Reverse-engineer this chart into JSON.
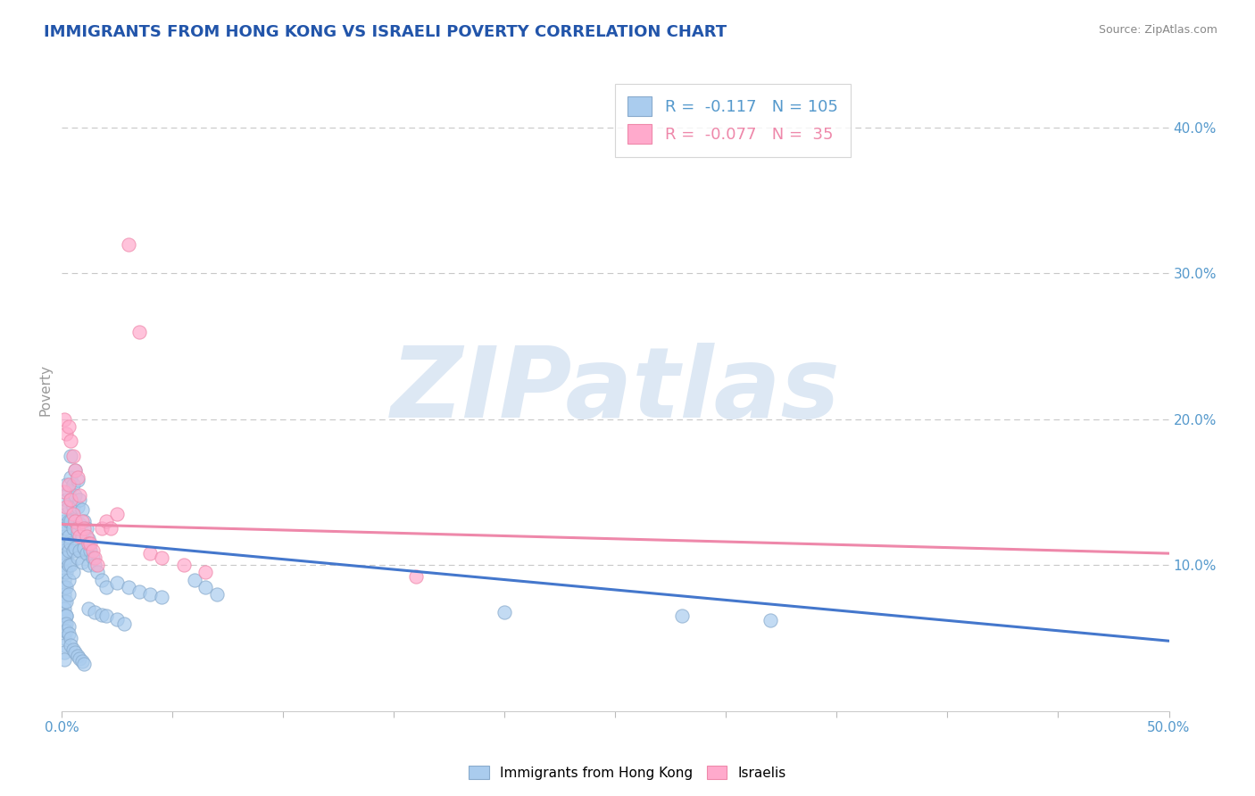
{
  "title": "IMMIGRANTS FROM HONG KONG VS ISRAELI POVERTY CORRELATION CHART",
  "source_text": "Source: ZipAtlas.com",
  "ylabel": "Poverty",
  "xlim": [
    0.0,
    0.5
  ],
  "ylim": [
    0.0,
    0.44
  ],
  "yticks_right": [
    0.1,
    0.2,
    0.3,
    0.4
  ],
  "ytick_labels_right": [
    "10.0%",
    "20.0%",
    "30.0%",
    "40.0%"
  ],
  "background_color": "#ffffff",
  "grid_color": "#c8c8c8",
  "title_color": "#2255aa",
  "axis_label_color": "#999999",
  "tick_color": "#5599cc",
  "watermark_text": "ZIPatlas",
  "watermark_color": "#dde8f4",
  "watermark_fontsize": 80,
  "legend_R1": "-0.117",
  "legend_N1": "105",
  "legend_R2": "-0.077",
  "legend_N2": "35",
  "series1_color": "#aaccee",
  "series2_color": "#ffaacc",
  "series1_edge": "#88aacc",
  "series2_edge": "#ee88aa",
  "line1_color": "#4477cc",
  "line2_color": "#ee88aa",
  "line1_y_start": 0.118,
  "line1_y_end": 0.048,
  "line2_y_start": 0.128,
  "line2_y_end": 0.108,
  "blue_x": [
    0.001,
    0.001,
    0.001,
    0.001,
    0.001,
    0.001,
    0.001,
    0.001,
    0.001,
    0.001,
    0.001,
    0.001,
    0.001,
    0.001,
    0.001,
    0.001,
    0.001,
    0.001,
    0.001,
    0.001,
    0.002,
    0.002,
    0.002,
    0.002,
    0.002,
    0.002,
    0.002,
    0.002,
    0.002,
    0.002,
    0.003,
    0.003,
    0.003,
    0.003,
    0.003,
    0.003,
    0.003,
    0.003,
    0.004,
    0.004,
    0.004,
    0.004,
    0.004,
    0.004,
    0.005,
    0.005,
    0.005,
    0.005,
    0.005,
    0.006,
    0.006,
    0.006,
    0.006,
    0.007,
    0.007,
    0.007,
    0.007,
    0.008,
    0.008,
    0.008,
    0.009,
    0.009,
    0.009,
    0.01,
    0.01,
    0.011,
    0.011,
    0.012,
    0.012,
    0.013,
    0.014,
    0.015,
    0.016,
    0.018,
    0.02,
    0.025,
    0.03,
    0.035,
    0.04,
    0.045,
    0.06,
    0.065,
    0.07,
    0.2,
    0.28,
    0.32,
    0.002,
    0.002,
    0.002,
    0.003,
    0.003,
    0.004,
    0.004,
    0.005,
    0.006,
    0.007,
    0.008,
    0.009,
    0.01,
    0.012,
    0.015,
    0.018,
    0.02,
    0.025,
    0.028
  ],
  "blue_y": [
    0.13,
    0.125,
    0.12,
    0.115,
    0.11,
    0.105,
    0.1,
    0.095,
    0.09,
    0.085,
    0.08,
    0.075,
    0.07,
    0.065,
    0.06,
    0.055,
    0.05,
    0.045,
    0.04,
    0.035,
    0.155,
    0.145,
    0.135,
    0.125,
    0.115,
    0.105,
    0.095,
    0.085,
    0.075,
    0.065,
    0.15,
    0.14,
    0.13,
    0.12,
    0.11,
    0.1,
    0.09,
    0.08,
    0.175,
    0.16,
    0.145,
    0.13,
    0.115,
    0.1,
    0.155,
    0.14,
    0.125,
    0.11,
    0.095,
    0.165,
    0.148,
    0.13,
    0.112,
    0.158,
    0.14,
    0.122,
    0.105,
    0.145,
    0.128,
    0.11,
    0.138,
    0.12,
    0.102,
    0.13,
    0.112,
    0.125,
    0.108,
    0.118,
    0.1,
    0.11,
    0.105,
    0.1,
    0.095,
    0.09,
    0.085,
    0.088,
    0.085,
    0.082,
    0.08,
    0.078,
    0.09,
    0.085,
    0.08,
    0.068,
    0.065,
    0.062,
    0.065,
    0.06,
    0.055,
    0.058,
    0.053,
    0.05,
    0.045,
    0.042,
    0.04,
    0.038,
    0.036,
    0.034,
    0.032,
    0.07,
    0.068,
    0.066,
    0.065,
    0.063,
    0.06
  ],
  "pink_x": [
    0.001,
    0.001,
    0.002,
    0.002,
    0.003,
    0.003,
    0.004,
    0.004,
    0.005,
    0.005,
    0.006,
    0.006,
    0.007,
    0.007,
    0.008,
    0.008,
    0.009,
    0.01,
    0.011,
    0.012,
    0.013,
    0.014,
    0.015,
    0.016,
    0.018,
    0.02,
    0.022,
    0.025,
    0.03,
    0.035,
    0.04,
    0.045,
    0.055,
    0.065,
    0.16
  ],
  "pink_y": [
    0.2,
    0.15,
    0.19,
    0.14,
    0.195,
    0.155,
    0.185,
    0.145,
    0.175,
    0.135,
    0.165,
    0.13,
    0.16,
    0.125,
    0.148,
    0.12,
    0.13,
    0.125,
    0.12,
    0.115,
    0.115,
    0.11,
    0.105,
    0.1,
    0.125,
    0.13,
    0.125,
    0.135,
    0.32,
    0.26,
    0.108,
    0.105,
    0.1,
    0.095,
    0.092
  ]
}
